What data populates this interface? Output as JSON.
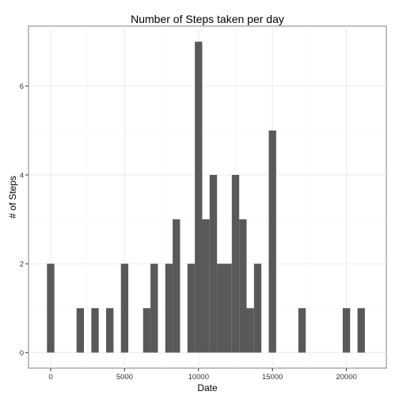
{
  "chart_data": {
    "type": "bar",
    "title": "Number of Steps taken per day",
    "xlabel": "Date",
    "ylabel": "# of Steps",
    "xlim": [
      -1500,
      22700
    ],
    "ylim": [
      -0.35,
      7.35
    ],
    "x_ticks": [
      0,
      5000,
      10000,
      15000,
      20000
    ],
    "y_ticks": [
      0,
      2,
      4,
      6
    ],
    "bin_width": 500,
    "bins": [
      {
        "x": 0,
        "count": 2
      },
      {
        "x": 2000,
        "count": 1
      },
      {
        "x": 3000,
        "count": 1
      },
      {
        "x": 4000,
        "count": 1
      },
      {
        "x": 5000,
        "count": 2
      },
      {
        "x": 6500,
        "count": 1
      },
      {
        "x": 7000,
        "count": 2
      },
      {
        "x": 8000,
        "count": 2
      },
      {
        "x": 8500,
        "count": 3
      },
      {
        "x": 9500,
        "count": 2
      },
      {
        "x": 10000,
        "count": 7
      },
      {
        "x": 10500,
        "count": 3
      },
      {
        "x": 11000,
        "count": 4
      },
      {
        "x": 11500,
        "count": 2
      },
      {
        "x": 12000,
        "count": 2
      },
      {
        "x": 12500,
        "count": 4
      },
      {
        "x": 13000,
        "count": 3
      },
      {
        "x": 13500,
        "count": 1
      },
      {
        "x": 14000,
        "count": 2
      },
      {
        "x": 15000,
        "count": 5
      },
      {
        "x": 17000,
        "count": 1
      },
      {
        "x": 20000,
        "count": 1
      },
      {
        "x": 21000,
        "count": 1
      }
    ],
    "grid": true,
    "colors": {
      "bar": "#595959",
      "panel_border": "#7f7f7f",
      "grid": "#ebebeb"
    }
  }
}
